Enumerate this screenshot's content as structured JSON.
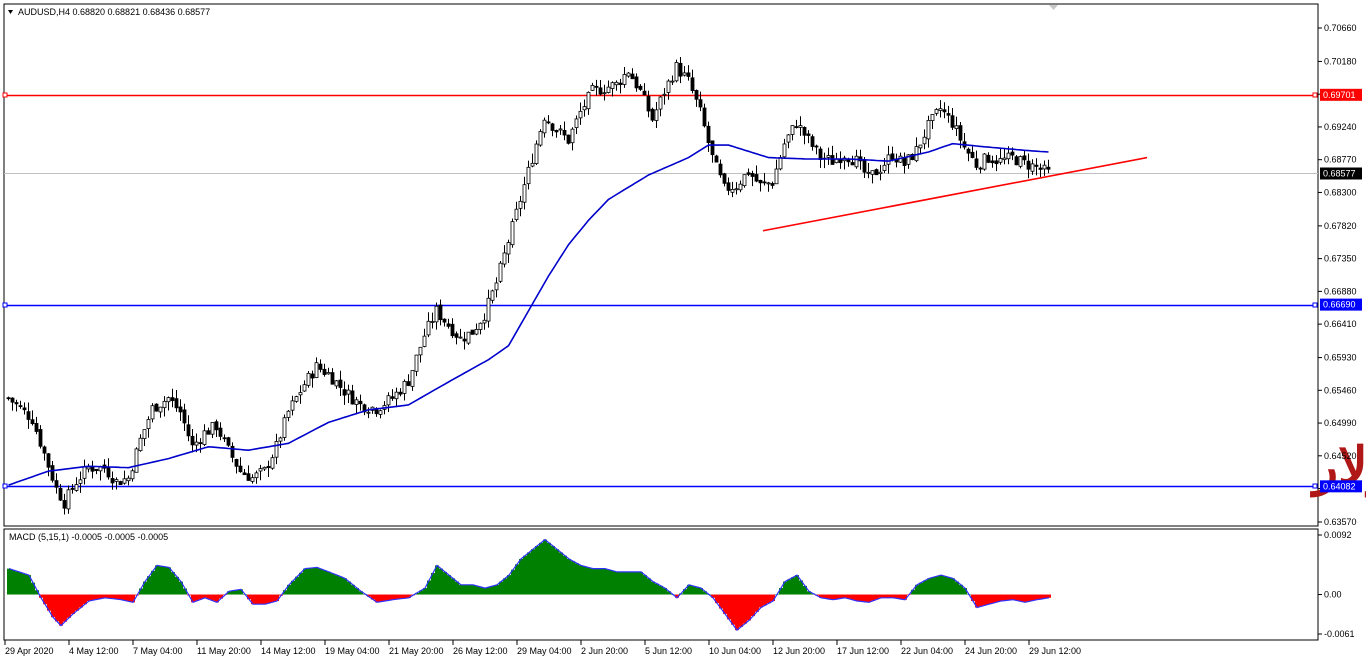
{
  "header": {
    "symbol_line": "AUDUSD,H4  0.68820 0.68821 0.68436 0.68577"
  },
  "overlay_text": "أسترالي دولار",
  "macd_header": "MACD (5,15,1) -0.0005 -0.0005 -0.0005",
  "colors": {
    "bull_candle": "#000000",
    "bear_candle": "#000000",
    "ma_line": "#0000cc",
    "resistance": "#ff0000",
    "support": "#0000ff",
    "trendline": "#ff0000",
    "macd_positive": "#008000",
    "macd_negative": "#ff0000",
    "macd_signal": "#3030ff"
  },
  "chart_data": {
    "type": "candlestick",
    "symbol": "AUDUSD",
    "timeframe": "H4",
    "price_axis": {
      "min": 0.6357,
      "max": 0.7066,
      "ticks": [
        "0.70660",
        "0.70180",
        "0.69710",
        "0.69240",
        "0.68770",
        "0.68300",
        "0.67820",
        "0.67350",
        "0.66880",
        "0.66410",
        "0.65930",
        "0.65460",
        "0.64990",
        "0.64520",
        "0.64050",
        "0.63570"
      ]
    },
    "time_axis": {
      "labels": [
        "29 Apr 2020",
        "4 May 12:00",
        "7 May 04:00",
        "11 May 20:00",
        "14 May 12:00",
        "19 May 04:00",
        "21 May 20:00",
        "26 May 12:00",
        "29 May 04:00",
        "2 Jun 20:00",
        "5 Jun 12:00",
        "10 Jun 04:00",
        "12 Jun 20:00",
        "17 Jun 12:00",
        "22 Jun 04:00",
        "24 Jun 20:00",
        "29 Jun 12:00"
      ]
    },
    "close_path": [
      [
        0,
        0.6535
      ],
      [
        6,
        0.6505
      ],
      [
        9,
        0.6455
      ],
      [
        12,
        0.6405
      ],
      [
        14,
        0.6385
      ],
      [
        17,
        0.6415
      ],
      [
        20,
        0.6435
      ],
      [
        24,
        0.6435
      ],
      [
        27,
        0.6415
      ],
      [
        30,
        0.642
      ],
      [
        33,
        0.6475
      ],
      [
        36,
        0.652
      ],
      [
        40,
        0.6535
      ],
      [
        43,
        0.6515
      ],
      [
        46,
        0.6465
      ],
      [
        49,
        0.6485
      ],
      [
        52,
        0.6495
      ],
      [
        55,
        0.646
      ],
      [
        58,
        0.643
      ],
      [
        61,
        0.642
      ],
      [
        64,
        0.643
      ],
      [
        67,
        0.6465
      ],
      [
        70,
        0.6515
      ],
      [
        74,
        0.6555
      ],
      [
        77,
        0.658
      ],
      [
        80,
        0.657
      ],
      [
        84,
        0.6545
      ],
      [
        88,
        0.6525
      ],
      [
        92,
        0.652
      ],
      [
        96,
        0.6535
      ],
      [
        100,
        0.656
      ],
      [
        104,
        0.6625
      ],
      [
        107,
        0.666
      ],
      [
        110,
        0.664
      ],
      [
        113,
        0.662
      ],
      [
        116,
        0.663
      ],
      [
        119,
        0.6655
      ],
      [
        122,
        0.67
      ],
      [
        125,
        0.676
      ],
      [
        128,
        0.682
      ],
      [
        131,
        0.688
      ],
      [
        134,
        0.694
      ],
      [
        137,
        0.692
      ],
      [
        140,
        0.6905
      ],
      [
        143,
        0.6945
      ],
      [
        146,
        0.6975
      ],
      [
        149,
        0.698
      ],
      [
        152,
        0.6985
      ],
      [
        155,
        0.7005
      ],
      [
        158,
        0.6975
      ],
      [
        161,
        0.6935
      ],
      [
        164,
        0.6975
      ],
      [
        167,
        0.701
      ],
      [
        170,
        0.699
      ],
      [
        173,
        0.6945
      ],
      [
        176,
        0.688
      ],
      [
        179,
        0.6835
      ],
      [
        182,
        0.684
      ],
      [
        185,
        0.686
      ],
      [
        188,
        0.684
      ],
      [
        191,
        0.6845
      ],
      [
        194,
        0.69
      ],
      [
        197,
        0.693
      ],
      [
        200,
        0.6905
      ],
      [
        203,
        0.688
      ],
      [
        206,
        0.6875
      ],
      [
        209,
        0.6885
      ],
      [
        212,
        0.6875
      ],
      [
        215,
        0.685
      ],
      [
        218,
        0.6865
      ],
      [
        221,
        0.6885
      ],
      [
        224,
        0.687
      ],
      [
        227,
        0.689
      ],
      [
        230,
        0.6925
      ],
      [
        233,
        0.695
      ],
      [
        236,
        0.693
      ],
      [
        239,
        0.6895
      ],
      [
        242,
        0.687
      ],
      [
        245,
        0.688
      ],
      [
        248,
        0.6875
      ],
      [
        251,
        0.688
      ],
      [
        254,
        0.6872
      ],
      [
        257,
        0.6866
      ],
      [
        260,
        0.6858
      ]
    ],
    "moving_average": [
      [
        0,
        0.641
      ],
      [
        10,
        0.643
      ],
      [
        20,
        0.6437
      ],
      [
        30,
        0.6435
      ],
      [
        40,
        0.6448
      ],
      [
        50,
        0.6465
      ],
      [
        60,
        0.646
      ],
      [
        70,
        0.647
      ],
      [
        80,
        0.65
      ],
      [
        90,
        0.6518
      ],
      [
        100,
        0.6525
      ],
      [
        110,
        0.6558
      ],
      [
        120,
        0.659
      ],
      [
        125,
        0.661
      ],
      [
        130,
        0.666
      ],
      [
        135,
        0.671
      ],
      [
        140,
        0.6755
      ],
      [
        145,
        0.679
      ],
      [
        150,
        0.682
      ],
      [
        160,
        0.6855
      ],
      [
        170,
        0.688
      ],
      [
        175,
        0.6898
      ],
      [
        180,
        0.6898
      ],
      [
        190,
        0.688
      ],
      [
        200,
        0.6878
      ],
      [
        210,
        0.6878
      ],
      [
        220,
        0.6875
      ],
      [
        230,
        0.6888
      ],
      [
        236,
        0.69
      ],
      [
        245,
        0.6895
      ],
      [
        255,
        0.689
      ],
      [
        260,
        0.6888
      ]
    ],
    "horizontal_lines": [
      {
        "price": 0.69701,
        "label": "0.69701",
        "color": "#ff0000"
      },
      {
        "price": 0.6669,
        "label": "0.66690",
        "color": "#0000ff"
      },
      {
        "price": 0.64082,
        "label": "0.64082",
        "color": "#0000ff"
      }
    ],
    "current_price": {
      "price": 0.68577,
      "label": "0.68577"
    },
    "trendline": {
      "from": [
        189,
        0.6775
      ],
      "to": [
        285,
        0.688
      ]
    },
    "macd": {
      "name": "MACD (5,15,1)",
      "axis_ticks": [
        "0.0092",
        "0.00",
        "-0.0061"
      ],
      "min": -0.0061,
      "max": 0.0092,
      "histogram": [
        [
          0,
          0.004
        ],
        [
          5,
          0.003
        ],
        [
          8,
          -0.0005
        ],
        [
          11,
          -0.0035
        ],
        [
          13,
          -0.0048
        ],
        [
          16,
          -0.003
        ],
        [
          20,
          -0.001
        ],
        [
          24,
          -0.0005
        ],
        [
          28,
          -0.0008
        ],
        [
          31,
          -0.0012
        ],
        [
          34,
          0.002
        ],
        [
          37,
          0.0045
        ],
        [
          40,
          0.0042
        ],
        [
          43,
          0.002
        ],
        [
          46,
          -0.0012
        ],
        [
          49,
          -0.0005
        ],
        [
          52,
          -0.0012
        ],
        [
          55,
          0.0005
        ],
        [
          58,
          0.0008
        ],
        [
          61,
          -0.0015
        ],
        [
          64,
          -0.0015
        ],
        [
          67,
          -0.001
        ],
        [
          70,
          0.0015
        ],
        [
          74,
          0.004
        ],
        [
          77,
          0.0042
        ],
        [
          80,
          0.0035
        ],
        [
          84,
          0.0025
        ],
        [
          88,
          0.0005
        ],
        [
          92,
          -0.0012
        ],
        [
          96,
          -0.0008
        ],
        [
          100,
          -0.0005
        ],
        [
          104,
          0.001
        ],
        [
          107,
          0.0045
        ],
        [
          110,
          0.003
        ],
        [
          113,
          0.0015
        ],
        [
          116,
          0.0015
        ],
        [
          119,
          0.001
        ],
        [
          122,
          0.0015
        ],
        [
          125,
          0.003
        ],
        [
          128,
          0.0055
        ],
        [
          131,
          0.007
        ],
        [
          134,
          0.0085
        ],
        [
          137,
          0.007
        ],
        [
          140,
          0.0055
        ],
        [
          143,
          0.0045
        ],
        [
          146,
          0.004
        ],
        [
          149,
          0.004
        ],
        [
          152,
          0.0035
        ],
        [
          155,
          0.0035
        ],
        [
          158,
          0.0035
        ],
        [
          161,
          0.002
        ],
        [
          164,
          0.001
        ],
        [
          167,
          -0.0005
        ],
        [
          170,
          0.0015
        ],
        [
          173,
          0.001
        ],
        [
          176,
          -0.0005
        ],
        [
          179,
          -0.003
        ],
        [
          182,
          -0.0055
        ],
        [
          185,
          -0.004
        ],
        [
          188,
          -0.002
        ],
        [
          191,
          -0.001
        ],
        [
          194,
          0.002
        ],
        [
          197,
          0.003
        ],
        [
          200,
          0.0005
        ],
        [
          203,
          -0.0005
        ],
        [
          206,
          -0.0008
        ],
        [
          209,
          -0.0005
        ],
        [
          212,
          -0.001
        ],
        [
          215,
          -0.0012
        ],
        [
          218,
          -0.0005
        ],
        [
          221,
          -0.0005
        ],
        [
          224,
          -0.0008
        ],
        [
          227,
          0.0015
        ],
        [
          230,
          0.0025
        ],
        [
          233,
          0.003
        ],
        [
          236,
          0.0025
        ],
        [
          239,
          0.001
        ],
        [
          242,
          -0.002
        ],
        [
          245,
          -0.0015
        ],
        [
          248,
          -0.001
        ],
        [
          251,
          -0.0008
        ],
        [
          254,
          -0.0012
        ],
        [
          257,
          -0.0008
        ],
        [
          260,
          -0.0005
        ]
      ]
    }
  }
}
